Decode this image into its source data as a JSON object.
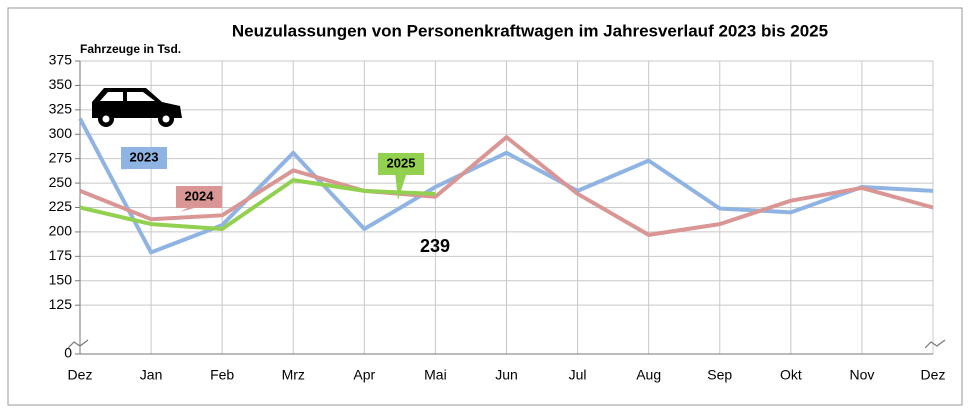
{
  "chart_data": {
    "type": "line",
    "title": "Neuzulassungen von Personenkraftwagen im Jahresverlauf 2023 bis 2025",
    "y_label": "Fahrzeuge in Tsd.",
    "categories": [
      "Dez",
      "Jan",
      "Feb",
      "Mrz",
      "Apr",
      "Mai",
      "Jun",
      "Jul",
      "Aug",
      "Sep",
      "Okt",
      "Nov",
      "Dez"
    ],
    "series": [
      {
        "name": "2023",
        "color": "#8fb4e3",
        "values": [
          316,
          179,
          207,
          281,
          203,
          246,
          281,
          242,
          273,
          224,
          220,
          246,
          242
        ]
      },
      {
        "name": "2024",
        "color": "#d99694",
        "values": [
          242,
          213,
          217,
          263,
          242,
          236,
          297,
          239,
          197,
          208,
          232,
          245,
          225
        ]
      },
      {
        "name": "2025",
        "color": "#92d050",
        "values": [
          225,
          208,
          203,
          253,
          242,
          239,
          null,
          null,
          null,
          null,
          null,
          null,
          null
        ]
      }
    ],
    "annotations": [
      {
        "text": "239"
      }
    ],
    "ylim": [
      0,
      375
    ],
    "y_break": [
      0,
      100
    ],
    "yticks": [
      0,
      125,
      150,
      175,
      200,
      225,
      250,
      275,
      300,
      325,
      350,
      375
    ],
    "grid": true
  }
}
